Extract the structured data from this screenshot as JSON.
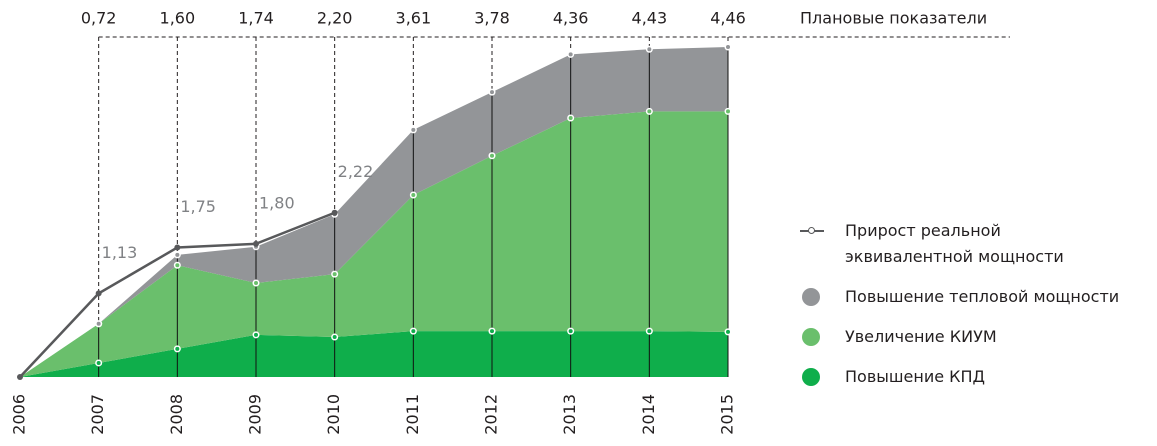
{
  "chart_data": {
    "type": "area",
    "categories": [
      "2006",
      "2007",
      "2008",
      "2009",
      "2010",
      "2011",
      "2012",
      "2013",
      "2014",
      "2015"
    ],
    "plan": {
      "name": "Плановые показатели",
      "values": [
        null,
        0.72,
        1.6,
        1.74,
        2.2,
        3.61,
        3.78,
        4.36,
        4.43,
        4.46
      ],
      "value_labels": [
        null,
        "0,72",
        "1,60",
        "1,74",
        "2,20",
        "3,61",
        "3,78",
        "4,36",
        "4,43",
        "4,46"
      ]
    },
    "series": [
      {
        "name": "Прирост реальной эквивалентной мощности",
        "type": "line",
        "color": "#58595b",
        "values": [
          0,
          1.13,
          1.75,
          1.8,
          2.22,
          null,
          null,
          null,
          null,
          null
        ],
        "value_labels": [
          null,
          "1,13",
          "1,75",
          "1,80",
          "2,22",
          null,
          null,
          null,
          null,
          null
        ]
      },
      {
        "name": "Повышение тепловой мощности",
        "type": "area",
        "color": "#939598",
        "values": [
          0,
          0,
          0.14,
          0.49,
          0.81,
          0.88,
          0.86,
          0.86,
          0.84,
          0.87
        ]
      },
      {
        "name": "Увеличение КИУМ",
        "type": "area",
        "color": "#6abf6c",
        "values": [
          0,
          0.53,
          1.13,
          0.7,
          0.85,
          1.84,
          2.37,
          2.88,
          2.97,
          2.98
        ]
      },
      {
        "name": "Повышение КПД",
        "type": "area",
        "color": "#0fae4b",
        "values": [
          0,
          0.19,
          0.38,
          0.57,
          0.54,
          0.62,
          0.62,
          0.62,
          0.62,
          0.61
        ]
      }
    ]
  }
}
